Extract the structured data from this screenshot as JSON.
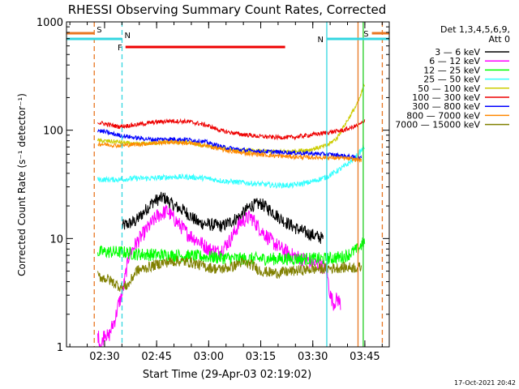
{
  "chart_data": {
    "type": "line",
    "title": "RHESSI Observing Summary Count Rates, Corrected",
    "xlabel": "Start Time (29-Apr-03 02:19:02)",
    "ylabel": "Corrected Count Rate (s⁻¹ detector⁻¹)",
    "yscale": "log",
    "ylim": [
      1,
      1000
    ],
    "xlim_minutes_after_start": [
      0,
      93
    ],
    "x_tick_labels": [
      "02:30",
      "02:45",
      "03:00",
      "03:15",
      "03:30",
      "03:45"
    ],
    "x_tick_minutes_after_start": [
      10.97,
      25.97,
      40.97,
      55.97,
      70.97,
      85.97
    ],
    "y_tick_labels": [
      "1",
      "10",
      "100",
      "1000"
    ],
    "y_tick_values": [
      1,
      10,
      100,
      1000
    ],
    "legend_header": [
      "Det 1,3,4,5,6,9,",
      "Att 0"
    ],
    "legend_position": "right",
    "timestamp": "17-Oct-2021 20:42",
    "flags": [
      {
        "label": "S",
        "color": "#e87722",
        "start_min": 0.0,
        "end_min": 8.0
      },
      {
        "label": "N",
        "color": "#33d6e0",
        "start_min": 0.0,
        "end_min": 16.0
      },
      {
        "label": "N",
        "color": "#33d6e0",
        "start_min": 75.0,
        "end_min": 93.0
      },
      {
        "label": "S",
        "color": "#e87722",
        "start_min": 88.0,
        "end_min": 93.0
      },
      {
        "label": "F",
        "color": "#ee0000",
        "start_min": 17.0,
        "end_min": 63.0
      }
    ],
    "vertical_markers": [
      {
        "minutes": 8.0,
        "color": "#e87722",
        "style": "dashed"
      },
      {
        "minutes": 16.0,
        "color": "#33d6e0",
        "style": "dashed"
      },
      {
        "minutes": 75.0,
        "color": "#33d6e0",
        "style": "solid"
      },
      {
        "minutes": 84.0,
        "color": "#e87722",
        "style": "solid"
      },
      {
        "minutes": 85.5,
        "color": "#22cc22",
        "style": "solid"
      },
      {
        "minutes": 91.0,
        "color": "#e87722",
        "style": "dashed"
      }
    ],
    "series": [
      {
        "name": "3 — 6 keV",
        "color": "#000000",
        "noise": 0.06,
        "x": [
          16,
          20,
          25,
          28,
          31,
          34,
          38,
          41,
          45,
          50,
          53,
          56,
          59,
          62,
          66,
          70,
          72,
          74
        ],
        "y": [
          13,
          14.5,
          22,
          24,
          20,
          18,
          14,
          13.5,
          13,
          16,
          20,
          21,
          18,
          15,
          12.5,
          11,
          10.5,
          10
        ]
      },
      {
        "name": "6 — 12 keV",
        "color": "#ff00ff",
        "noise": 0.07,
        "x": [
          9,
          10,
          11,
          12,
          13,
          14,
          15,
          16,
          18,
          20,
          23,
          26,
          29,
          32,
          35,
          38,
          41,
          44,
          47,
          50,
          53,
          56,
          59,
          62,
          65,
          68,
          71,
          74,
          75,
          76,
          77,
          78,
          79
        ],
        "y": [
          1.3,
          1.0,
          1.4,
          1.2,
          1.5,
          1.8,
          2.5,
          3.0,
          7.0,
          9.0,
          12,
          16,
          18,
          14,
          11,
          9.5,
          8.0,
          7.5,
          9.5,
          14,
          16,
          12,
          9.5,
          8.0,
          7.0,
          6.5,
          6.0,
          5.5,
          5.0,
          3.0,
          2.5,
          2.8,
          2.5
        ]
      },
      {
        "name": "12 — 25 keV",
        "color": "#00ff00",
        "noise": 0.06,
        "x": [
          9,
          16,
          20,
          30,
          40,
          50,
          60,
          70,
          75,
          80,
          84,
          86
        ],
        "y": [
          7.5,
          7.5,
          7.2,
          7.0,
          6.8,
          6.5,
          6.5,
          6.5,
          6.5,
          6.8,
          8.0,
          9.5
        ]
      },
      {
        "name": "25 — 50 keV",
        "color": "#33ffff",
        "noise": 0.025,
        "x": [
          9,
          15,
          20,
          25,
          30,
          35,
          40,
          45,
          50,
          55,
          60,
          65,
          70,
          75,
          80,
          83,
          85,
          86
        ],
        "y": [
          35,
          35,
          36,
          36,
          37,
          37,
          36,
          34,
          33,
          32,
          31,
          31,
          33,
          37,
          46,
          55,
          65,
          72
        ]
      },
      {
        "name": "50 — 100 keV",
        "color": "#cccc00",
        "noise": 0.02,
        "x": [
          9,
          15,
          20,
          25,
          30,
          35,
          40,
          45,
          50,
          55,
          60,
          65,
          70,
          75,
          78,
          80,
          82,
          84,
          85,
          86
        ],
        "y": [
          80,
          78,
          74,
          76,
          78,
          77,
          72,
          68,
          65,
          64,
          63,
          64,
          66,
          72,
          85,
          110,
          140,
          180,
          220,
          270
        ]
      },
      {
        "name": "100 — 300 keV",
        "color": "#ee0000",
        "noise": 0.02,
        "x": [
          9,
          15,
          20,
          25,
          30,
          35,
          40,
          45,
          50,
          55,
          60,
          65,
          70,
          75,
          80,
          83,
          85,
          86
        ],
        "y": [
          118,
          108,
          112,
          118,
          122,
          120,
          112,
          98,
          92,
          88,
          86,
          86,
          90,
          95,
          100,
          108,
          115,
          125
        ]
      },
      {
        "name": "300 — 800 keV",
        "color": "#0000ff",
        "noise": 0.02,
        "x": [
          9,
          15,
          20,
          25,
          30,
          35,
          40,
          45,
          50,
          55,
          60,
          65,
          70,
          75,
          80,
          85
        ],
        "y": [
          100,
          90,
          85,
          82,
          83,
          82,
          78,
          70,
          66,
          64,
          63,
          62,
          61,
          60,
          58,
          55
        ]
      },
      {
        "name": "800 — 7000 keV",
        "color": "#ff8800",
        "noise": 0.02,
        "x": [
          9,
          15,
          20,
          25,
          30,
          35,
          40,
          45,
          50,
          55,
          60,
          65,
          70,
          75,
          80,
          85
        ],
        "y": [
          75,
          72,
          74,
          76,
          78,
          76,
          72,
          66,
          62,
          60,
          58,
          57,
          56,
          56,
          55,
          53
        ]
      },
      {
        "name": "7000 — 15000 keV",
        "color": "#808000",
        "noise": 0.05,
        "x": [
          9,
          12,
          16,
          18,
          20,
          24,
          28,
          32,
          36,
          40,
          44,
          48,
          50,
          53,
          56,
          60,
          65,
          70,
          75,
          80,
          85
        ],
        "y": [
          4.5,
          4.2,
          3.5,
          3.8,
          5.0,
          5.5,
          6.0,
          6.2,
          6.0,
          5.5,
          5.2,
          5.5,
          6.0,
          5.8,
          5.0,
          4.8,
          5.0,
          5.2,
          5.3,
          5.4,
          5.4
        ]
      }
    ]
  }
}
